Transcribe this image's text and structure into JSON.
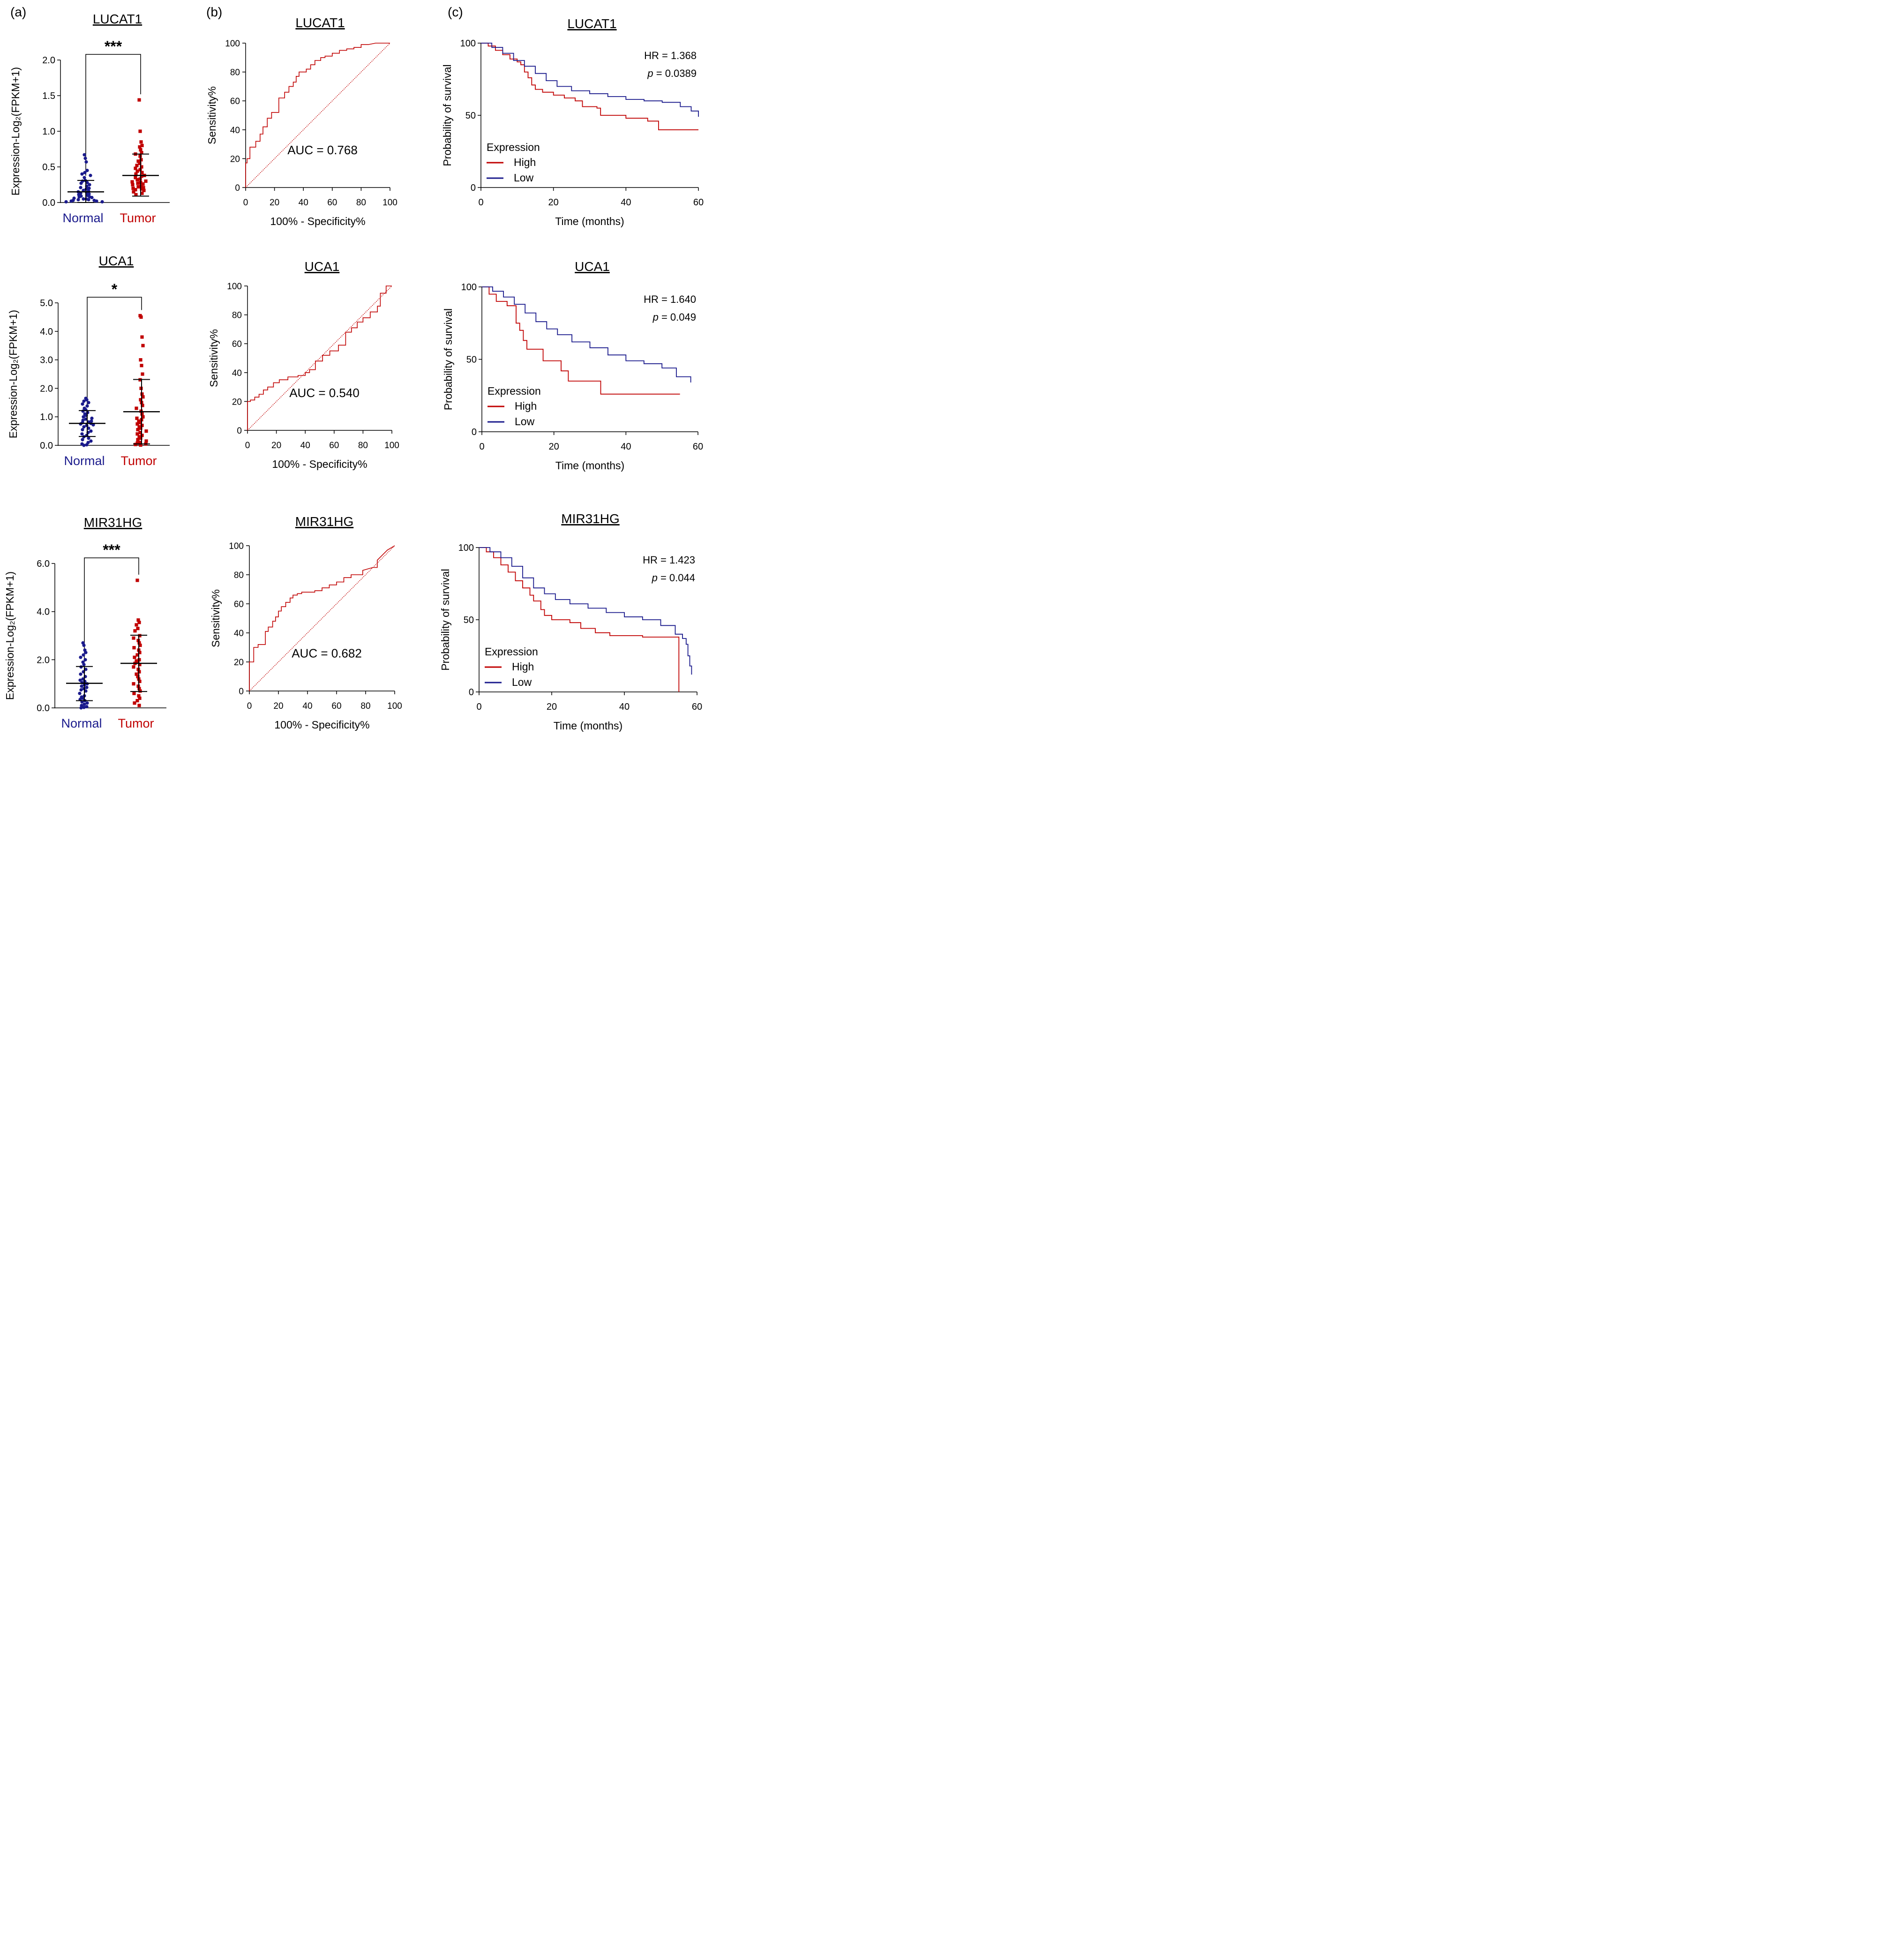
{
  "figure": {
    "panel_labels": [
      "(a)",
      "(b)",
      "(c)"
    ],
    "colors": {
      "normal": "#1a1a8c",
      "tumor": "#c00000",
      "high": "#c00000",
      "low": "#1a1a8c",
      "axis": "#000000"
    }
  },
  "chart_data": [
    {
      "type": "scatter",
      "title": "LUCAT1",
      "significance": "***",
      "ylabel": "Expression-Log₂(FPKM+1)",
      "categories": [
        "Normal",
        "Tumor"
      ],
      "ylim": [
        0,
        2.0
      ],
      "yticks": [
        0.0,
        0.5,
        1.0,
        1.5,
        2.0
      ],
      "ytick_labels": [
        "0.0",
        "0.5",
        "1.0",
        "1.5",
        "2.0"
      ],
      "groups": [
        {
          "name": "Normal",
          "mean": 0.15,
          "sd_low": 0.0,
          "sd_high": 0.31,
          "points": [
            0.67,
            0.62,
            0.57,
            0.45,
            0.42,
            0.4,
            0.38,
            0.35,
            0.31,
            0.3,
            0.28,
            0.27,
            0.25,
            0.23,
            0.21,
            0.2,
            0.19,
            0.17,
            0.16,
            0.15,
            0.14,
            0.13,
            0.12,
            0.11,
            0.1,
            0.09,
            0.08,
            0.08,
            0.07,
            0.06,
            0.05,
            0.05,
            0.04,
            0.04,
            0.03,
            0.03,
            0.02,
            0.02,
            0.01,
            0.01
          ]
        },
        {
          "name": "Tumor",
          "mean": 0.38,
          "sd_low": 0.09,
          "sd_high": 0.68,
          "points": [
            1.44,
            1.0,
            0.85,
            0.8,
            0.78,
            0.74,
            0.7,
            0.68,
            0.65,
            0.6,
            0.58,
            0.55,
            0.52,
            0.5,
            0.48,
            0.46,
            0.44,
            0.42,
            0.4,
            0.38,
            0.37,
            0.35,
            0.33,
            0.32,
            0.3,
            0.29,
            0.28,
            0.27,
            0.26,
            0.25,
            0.23,
            0.22,
            0.21,
            0.2,
            0.19,
            0.18,
            0.17,
            0.15,
            0.13,
            0.11
          ]
        }
      ]
    },
    {
      "type": "line",
      "subtype": "roc",
      "title": "LUCAT1",
      "xlabel": "100% - Specificity%",
      "ylabel": "Sensitivity%",
      "xlim": [
        0,
        100
      ],
      "ylim": [
        0,
        100
      ],
      "ticks": [
        0,
        20,
        40,
        60,
        80,
        100
      ],
      "annotation": "AUC = 0.768",
      "x": [
        0,
        0,
        1,
        1,
        3,
        3,
        7,
        7,
        10,
        10,
        12,
        12,
        15,
        15,
        18,
        18,
        23,
        23,
        27,
        27,
        30,
        30,
        33,
        33,
        35,
        35,
        37,
        37,
        42,
        42,
        45,
        45,
        48,
        48,
        52,
        52,
        55,
        55,
        60,
        60,
        65,
        65,
        70,
        70,
        75,
        75,
        80,
        80,
        85,
        90,
        95,
        100
      ],
      "y": [
        0,
        17,
        17,
        20,
        20,
        28,
        28,
        32,
        32,
        37,
        37,
        42,
        42,
        48,
        48,
        52,
        52,
        62,
        62,
        66,
        66,
        70,
        70,
        73,
        73,
        77,
        77,
        80,
        80,
        82,
        82,
        85,
        85,
        88,
        88,
        90,
        90,
        91,
        91,
        93,
        93,
        95,
        95,
        96,
        96,
        97,
        97,
        99,
        99,
        100,
        100,
        100
      ]
    },
    {
      "type": "line",
      "subtype": "kaplan-meier",
      "title": "LUCAT1",
      "xlabel": "Time (months)",
      "ylabel": "Probability of survival",
      "xlim": [
        0,
        60
      ],
      "ylim": [
        0,
        100
      ],
      "xticks": [
        0,
        20,
        40,
        60
      ],
      "yticks": [
        0,
        50,
        100
      ],
      "hr_text": "HR = 1.368",
      "p_prefix": "p",
      "p_text": " = 0.0389",
      "legend_title": "Expression",
      "series": [
        {
          "name": "High",
          "x": [
            0,
            2,
            4,
            6,
            8,
            10,
            11,
            12,
            13,
            14,
            15,
            17,
            20,
            23,
            26,
            28,
            32,
            33,
            40,
            46,
            49,
            60
          ],
          "y": [
            100,
            98,
            95,
            92,
            89,
            87,
            85,
            80,
            76,
            71,
            68,
            66,
            64,
            62,
            60,
            56,
            55,
            50,
            48,
            46,
            40,
            40
          ]
        },
        {
          "name": "Low",
          "x": [
            0,
            3,
            6,
            9,
            12,
            15,
            18,
            21,
            25,
            30,
            35,
            40,
            45,
            50,
            55,
            58,
            60
          ],
          "y": [
            100,
            97,
            93,
            88,
            84,
            79,
            74,
            70,
            67,
            65,
            63,
            61,
            60,
            59,
            56,
            53,
            49
          ]
        }
      ]
    },
    {
      "type": "scatter",
      "title": "UCA1",
      "significance": "*",
      "ylabel": "Expression-Log₂(FPKM+1)",
      "categories": [
        "Normal",
        "Tumor"
      ],
      "ylim": [
        0,
        5.0
      ],
      "yticks": [
        0.0,
        1.0,
        2.0,
        3.0,
        4.0,
        5.0
      ],
      "ytick_labels": [
        "0.0",
        "1.0",
        "2.0",
        "3.0",
        "4.0",
        "5.0"
      ],
      "groups": [
        {
          "name": "Normal",
          "mean": 0.77,
          "sd_low": 0.31,
          "sd_high": 1.22,
          "points": [
            1.65,
            1.6,
            1.55,
            1.5,
            1.45,
            1.38,
            1.3,
            1.25,
            1.2,
            1.15,
            1.1,
            1.05,
            1.0,
            0.95,
            0.92,
            0.88,
            0.85,
            0.82,
            0.8,
            0.77,
            0.75,
            0.72,
            0.7,
            0.65,
            0.6,
            0.55,
            0.5,
            0.45,
            0.4,
            0.35,
            0.3,
            0.25,
            0.2,
            0.15,
            0.1,
            0.05,
            0.02,
            0.0
          ]
        },
        {
          "name": "Tumor",
          "mean": 1.18,
          "sd_low": 0.05,
          "sd_high": 2.31,
          "points": [
            4.55,
            4.5,
            3.8,
            3.5,
            3.0,
            2.8,
            2.5,
            2.3,
            2.0,
            1.8,
            1.7,
            1.6,
            1.5,
            1.4,
            1.3,
            1.2,
            1.1,
            1.0,
            0.95,
            0.9,
            0.85,
            0.8,
            0.75,
            0.7,
            0.65,
            0.6,
            0.55,
            0.5,
            0.45,
            0.4,
            0.35,
            0.3,
            0.25,
            0.2,
            0.15,
            0.1,
            0.08,
            0.05,
            0.03,
            0.01
          ]
        }
      ]
    },
    {
      "type": "line",
      "subtype": "roc",
      "title": "UCA1",
      "xlabel": "100% - Specificity%",
      "ylabel": "Sensitivity%",
      "xlim": [
        0,
        100
      ],
      "ylim": [
        0,
        100
      ],
      "ticks": [
        0,
        20,
        40,
        60,
        80,
        100
      ],
      "annotation": "AUC = 0.540",
      "x": [
        0,
        0,
        2,
        2,
        5,
        5,
        8,
        8,
        11,
        11,
        14,
        14,
        18,
        18,
        22,
        22,
        28,
        28,
        35,
        35,
        40,
        40,
        43,
        43,
        47,
        47,
        52,
        52,
        57,
        57,
        63,
        63,
        68,
        68,
        72,
        72,
        76,
        76,
        80,
        80,
        85,
        85,
        90,
        90,
        92,
        92,
        96,
        96,
        100
      ],
      "y": [
        0,
        20,
        20,
        21,
        21,
        23,
        23,
        25,
        25,
        28,
        28,
        30,
        30,
        33,
        33,
        35,
        35,
        37,
        37,
        38,
        38,
        40,
        40,
        42,
        42,
        48,
        48,
        52,
        52,
        55,
        55,
        59,
        59,
        68,
        68,
        71,
        71,
        75,
        75,
        78,
        78,
        82,
        82,
        86,
        86,
        95,
        95,
        100,
        100
      ]
    },
    {
      "type": "line",
      "subtype": "kaplan-meier",
      "title": "UCA1",
      "xlabel": "Time (months)",
      "ylabel": "Probability of survival",
      "xlim": [
        0,
        60
      ],
      "ylim": [
        0,
        100
      ],
      "xticks": [
        0,
        20,
        40,
        60
      ],
      "yticks": [
        0,
        50,
        100
      ],
      "hr_text": "HR = 1.640",
      "p_prefix": "p",
      "p_text": " = 0.049",
      "legend_title": "Expression",
      "series": [
        {
          "name": "High",
          "x": [
            0,
            2,
            4,
            7,
            9,
            9.5,
            10.5,
            11.5,
            12.5,
            14,
            17,
            22,
            24,
            33,
            55
          ],
          "y": [
            100,
            95,
            90,
            87,
            87,
            75,
            70,
            63,
            57,
            57,
            49,
            42,
            35,
            26,
            26
          ]
        },
        {
          "name": "Low",
          "x": [
            0,
            3,
            6,
            9,
            12,
            15,
            18,
            21,
            25,
            30,
            35,
            40,
            45,
            50,
            54,
            58
          ],
          "y": [
            100,
            97,
            93,
            88,
            82,
            76,
            71,
            67,
            62,
            58,
            53,
            49,
            47,
            44,
            38,
            34
          ]
        }
      ]
    },
    {
      "type": "scatter",
      "title": "MIR31HG",
      "significance": "***",
      "ylabel": "Expression-Log₂(FPKM+1)",
      "categories": [
        "Normal",
        "Tumor"
      ],
      "ylim": [
        0,
        6.0
      ],
      "yticks": [
        0.0,
        2.0,
        4.0,
        6.0
      ],
      "ytick_labels": [
        "0.0",
        "2.0",
        "4.0",
        "6.0"
      ],
      "groups": [
        {
          "name": "Normal",
          "mean": 1.02,
          "sd_low": 0.3,
          "sd_high": 1.72,
          "points": [
            2.7,
            2.6,
            2.4,
            2.3,
            2.2,
            2.1,
            2.0,
            1.9,
            1.8,
            1.7,
            1.6,
            1.5,
            1.4,
            1.3,
            1.2,
            1.15,
            1.1,
            1.05,
            1.0,
            0.95,
            0.9,
            0.85,
            0.8,
            0.75,
            0.7,
            0.6,
            0.5,
            0.45,
            0.4,
            0.35,
            0.3,
            0.25,
            0.2,
            0.15,
            0.1,
            0.05,
            0.02,
            0.0
          ]
        },
        {
          "name": "Tumor",
          "mean": 1.85,
          "sd_low": 0.68,
          "sd_high": 3.02,
          "points": [
            5.3,
            3.65,
            3.55,
            3.45,
            3.3,
            3.2,
            3.0,
            2.9,
            2.8,
            2.7,
            2.6,
            2.5,
            2.4,
            2.3,
            2.2,
            2.1,
            2.0,
            1.95,
            1.9,
            1.85,
            1.8,
            1.7,
            1.6,
            1.5,
            1.4,
            1.3,
            1.2,
            1.1,
            1.0,
            0.9,
            0.8,
            0.7,
            0.6,
            0.5,
            0.4,
            0.3,
            0.2,
            0.1
          ]
        }
      ]
    },
    {
      "type": "line",
      "subtype": "roc",
      "title": "MIR31HG",
      "xlabel": "100% - Specificity%",
      "ylabel": "Sensitivity%",
      "xlim": [
        0,
        100
      ],
      "ylim": [
        0,
        100
      ],
      "ticks": [
        0,
        20,
        40,
        60,
        80,
        100
      ],
      "annotation": "AUC = 0.682",
      "x": [
        0,
        0,
        3,
        3,
        6,
        6,
        11,
        11,
        13,
        13,
        16,
        16,
        18,
        18,
        20,
        20,
        22,
        22,
        25,
        25,
        28,
        28,
        30,
        30,
        33,
        33,
        36,
        36,
        45,
        45,
        50,
        50,
        55,
        55,
        60,
        60,
        65,
        65,
        70,
        70,
        78,
        78,
        85,
        88,
        88,
        92,
        95,
        100
      ],
      "y": [
        0,
        20,
        20,
        30,
        30,
        32,
        32,
        41,
        41,
        44,
        44,
        48,
        48,
        51,
        51,
        55,
        55,
        58,
        58,
        61,
        61,
        64,
        64,
        66,
        66,
        67,
        67,
        68,
        68,
        69,
        69,
        71,
        71,
        73,
        73,
        75,
        75,
        78,
        78,
        80,
        80,
        83,
        85,
        85,
        90,
        94,
        97,
        100
      ]
    },
    {
      "type": "line",
      "subtype": "kaplan-meier",
      "title": "MIR31HG",
      "xlabel": "Time (months)",
      "ylabel": "Probability of survival",
      "xlim": [
        0,
        60
      ],
      "ylim": [
        0,
        100
      ],
      "xticks": [
        0,
        20,
        40,
        60
      ],
      "yticks": [
        0,
        50,
        100
      ],
      "hr_text": "HR = 1.423",
      "p_prefix": "p",
      "p_text": " = 0.044",
      "legend_title": "Expression",
      "series": [
        {
          "name": "High",
          "x": [
            0,
            2,
            4,
            6,
            8,
            10,
            12,
            14,
            15,
            17,
            18,
            20,
            25,
            28,
            32,
            36,
            45,
            54,
            55,
            55
          ],
          "y": [
            100,
            97,
            93,
            88,
            83,
            77,
            72,
            67,
            63,
            57,
            53,
            50,
            48,
            44,
            41,
            39,
            38,
            38,
            38,
            0
          ]
        },
        {
          "name": "Low",
          "x": [
            0,
            3,
            6,
            9,
            12,
            15,
            18,
            21,
            25,
            30,
            35,
            40,
            45,
            50,
            54,
            56,
            57,
            57.5,
            58,
            58.5
          ],
          "y": [
            100,
            97,
            93,
            87,
            79,
            72,
            68,
            64,
            61,
            58,
            55,
            52,
            50,
            46,
            40,
            37,
            33,
            25,
            18,
            12
          ]
        }
      ]
    }
  ]
}
